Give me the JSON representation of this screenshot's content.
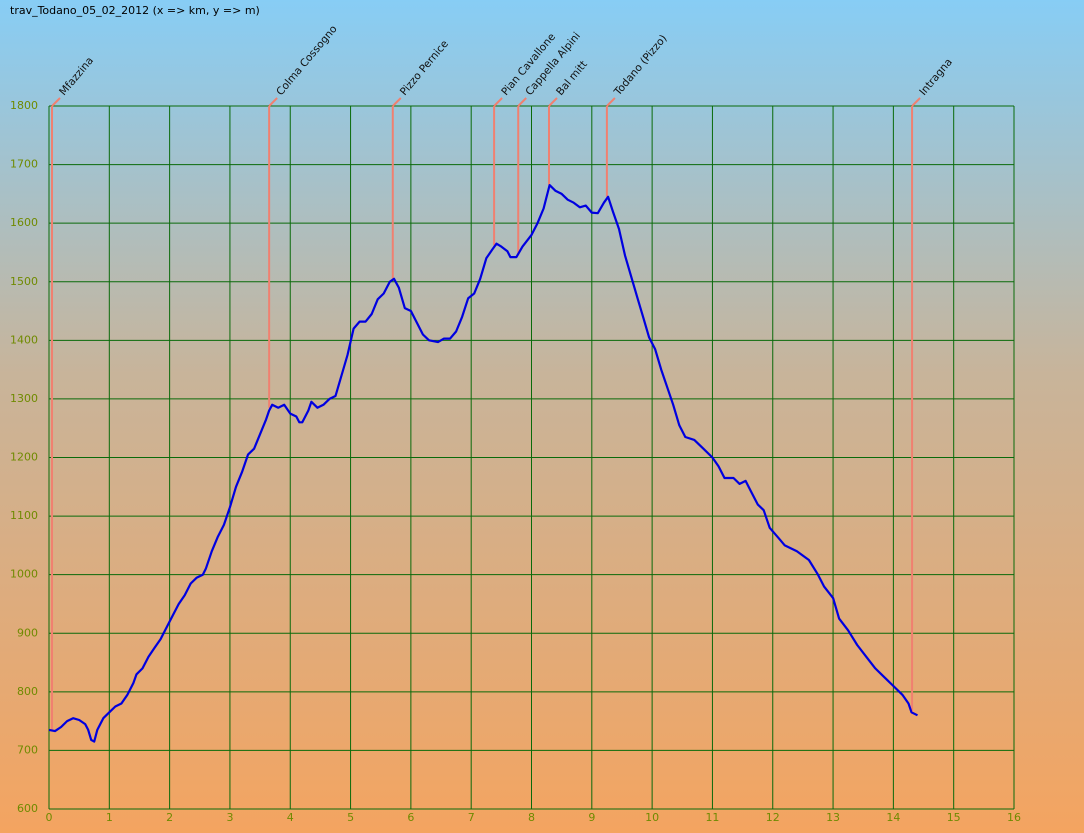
{
  "chart_data": {
    "type": "line",
    "title": "trav_Todano_05_02_2012 (x => km, y => m)",
    "xlim": [
      0,
      16
    ],
    "ylim": [
      600,
      1800
    ],
    "xticks": [
      0,
      1,
      2,
      3,
      4,
      5,
      6,
      7,
      8,
      9,
      10,
      11,
      12,
      13,
      14,
      15,
      16
    ],
    "yticks": [
      600,
      700,
      800,
      900,
      1000,
      1100,
      1200,
      1300,
      1400,
      1500,
      1600,
      1700,
      1800
    ],
    "grid": true,
    "grid_color": "#0a6a0a",
    "x": [
      0,
      0.1,
      0.2,
      0.3,
      0.4,
      0.5,
      0.6,
      0.65,
      0.7,
      0.75,
      0.8,
      0.9,
      1.0,
      1.1,
      1.2,
      1.3,
      1.4,
      1.45,
      1.55,
      1.65,
      1.75,
      1.85,
      1.95,
      2.05,
      2.15,
      2.25,
      2.35,
      2.45,
      2.55,
      2.6,
      2.7,
      2.8,
      2.9,
      3.0,
      3.1,
      3.2,
      3.3,
      3.4,
      3.5,
      3.6,
      3.65,
      3.7,
      3.8,
      3.9,
      4.0,
      4.1,
      4.15,
      4.2,
      4.3,
      4.35,
      4.45,
      4.55,
      4.65,
      4.75,
      4.85,
      4.95,
      5.05,
      5.15,
      5.25,
      5.35,
      5.45,
      5.55,
      5.65,
      5.72,
      5.8,
      5.9,
      6.0,
      6.1,
      6.2,
      6.3,
      6.45,
      6.55,
      6.65,
      6.75,
      6.85,
      6.95,
      7.05,
      7.15,
      7.25,
      7.35,
      7.42,
      7.5,
      7.6,
      7.65,
      7.75,
      7.85,
      8.0,
      8.1,
      8.2,
      8.3,
      8.4,
      8.5,
      8.6,
      8.7,
      8.8,
      8.9,
      9.0,
      9.1,
      9.2,
      9.27,
      9.35,
      9.45,
      9.55,
      9.65,
      9.75,
      9.85,
      9.95,
      10.05,
      10.15,
      10.25,
      10.35,
      10.45,
      10.55,
      10.7,
      10.85,
      11.0,
      11.1,
      11.2,
      11.35,
      11.45,
      11.55,
      11.65,
      11.75,
      11.85,
      11.95,
      12.1,
      12.2,
      12.4,
      12.6,
      12.75,
      12.85,
      13.0,
      13.1,
      13.25,
      13.4,
      13.55,
      13.7,
      13.85,
      14.0,
      14.15,
      14.25,
      14.3,
      14.4
    ],
    "series": [
      {
        "color": "#0000e0",
        "values": [
          735,
          733,
          740,
          750,
          755,
          752,
          745,
          735,
          718,
          715,
          735,
          755,
          765,
          775,
          780,
          795,
          815,
          830,
          840,
          860,
          875,
          890,
          910,
          930,
          950,
          965,
          985,
          995,
          1000,
          1010,
          1040,
          1065,
          1085,
          1115,
          1150,
          1175,
          1205,
          1215,
          1240,
          1265,
          1280,
          1290,
          1285,
          1290,
          1275,
          1270,
          1260,
          1260,
          1280,
          1295,
          1285,
          1290,
          1300,
          1305,
          1340,
          1375,
          1420,
          1432,
          1432,
          1445,
          1470,
          1480,
          1500,
          1505,
          1490,
          1455,
          1450,
          1430,
          1410,
          1400,
          1397,
          1403,
          1403,
          1415,
          1440,
          1472,
          1480,
          1505,
          1540,
          1555,
          1565,
          1560,
          1552,
          1542,
          1542,
          1560,
          1580,
          1600,
          1625,
          1665,
          1655,
          1650,
          1640,
          1635,
          1627,
          1630,
          1618,
          1617,
          1635,
          1645,
          1620,
          1590,
          1545,
          1510,
          1475,
          1440,
          1405,
          1385,
          1350,
          1320,
          1290,
          1255,
          1235,
          1230,
          1215,
          1200,
          1185,
          1165,
          1165,
          1155,
          1160,
          1140,
          1120,
          1110,
          1080,
          1062,
          1050,
          1040,
          1025,
          1000,
          980,
          960,
          925,
          905,
          880,
          860,
          840,
          825,
          810,
          795,
          780,
          765,
          760
        ]
      }
    ],
    "annotation_color": "#f08070",
    "annotations": [
      {
        "text": "Mfazzina",
        "x": 0.05,
        "y": 735
      },
      {
        "text": "Colma Cossogno",
        "x": 3.65,
        "y": 1285
      },
      {
        "text": "Pizzo Pernice",
        "x": 5.7,
        "y": 1505
      },
      {
        "text": "Pian Cavallone",
        "x": 7.38,
        "y": 1562
      },
      {
        "text": "Cappella Alpini",
        "x": 7.78,
        "y": 1545
      },
      {
        "text": "Bal mitt",
        "x": 8.29,
        "y": 1665
      },
      {
        "text": "Todano (Pizzo)",
        "x": 9.25,
        "y": 1645
      },
      {
        "text": "Intragna",
        "x": 14.31,
        "y": 762
      }
    ]
  }
}
